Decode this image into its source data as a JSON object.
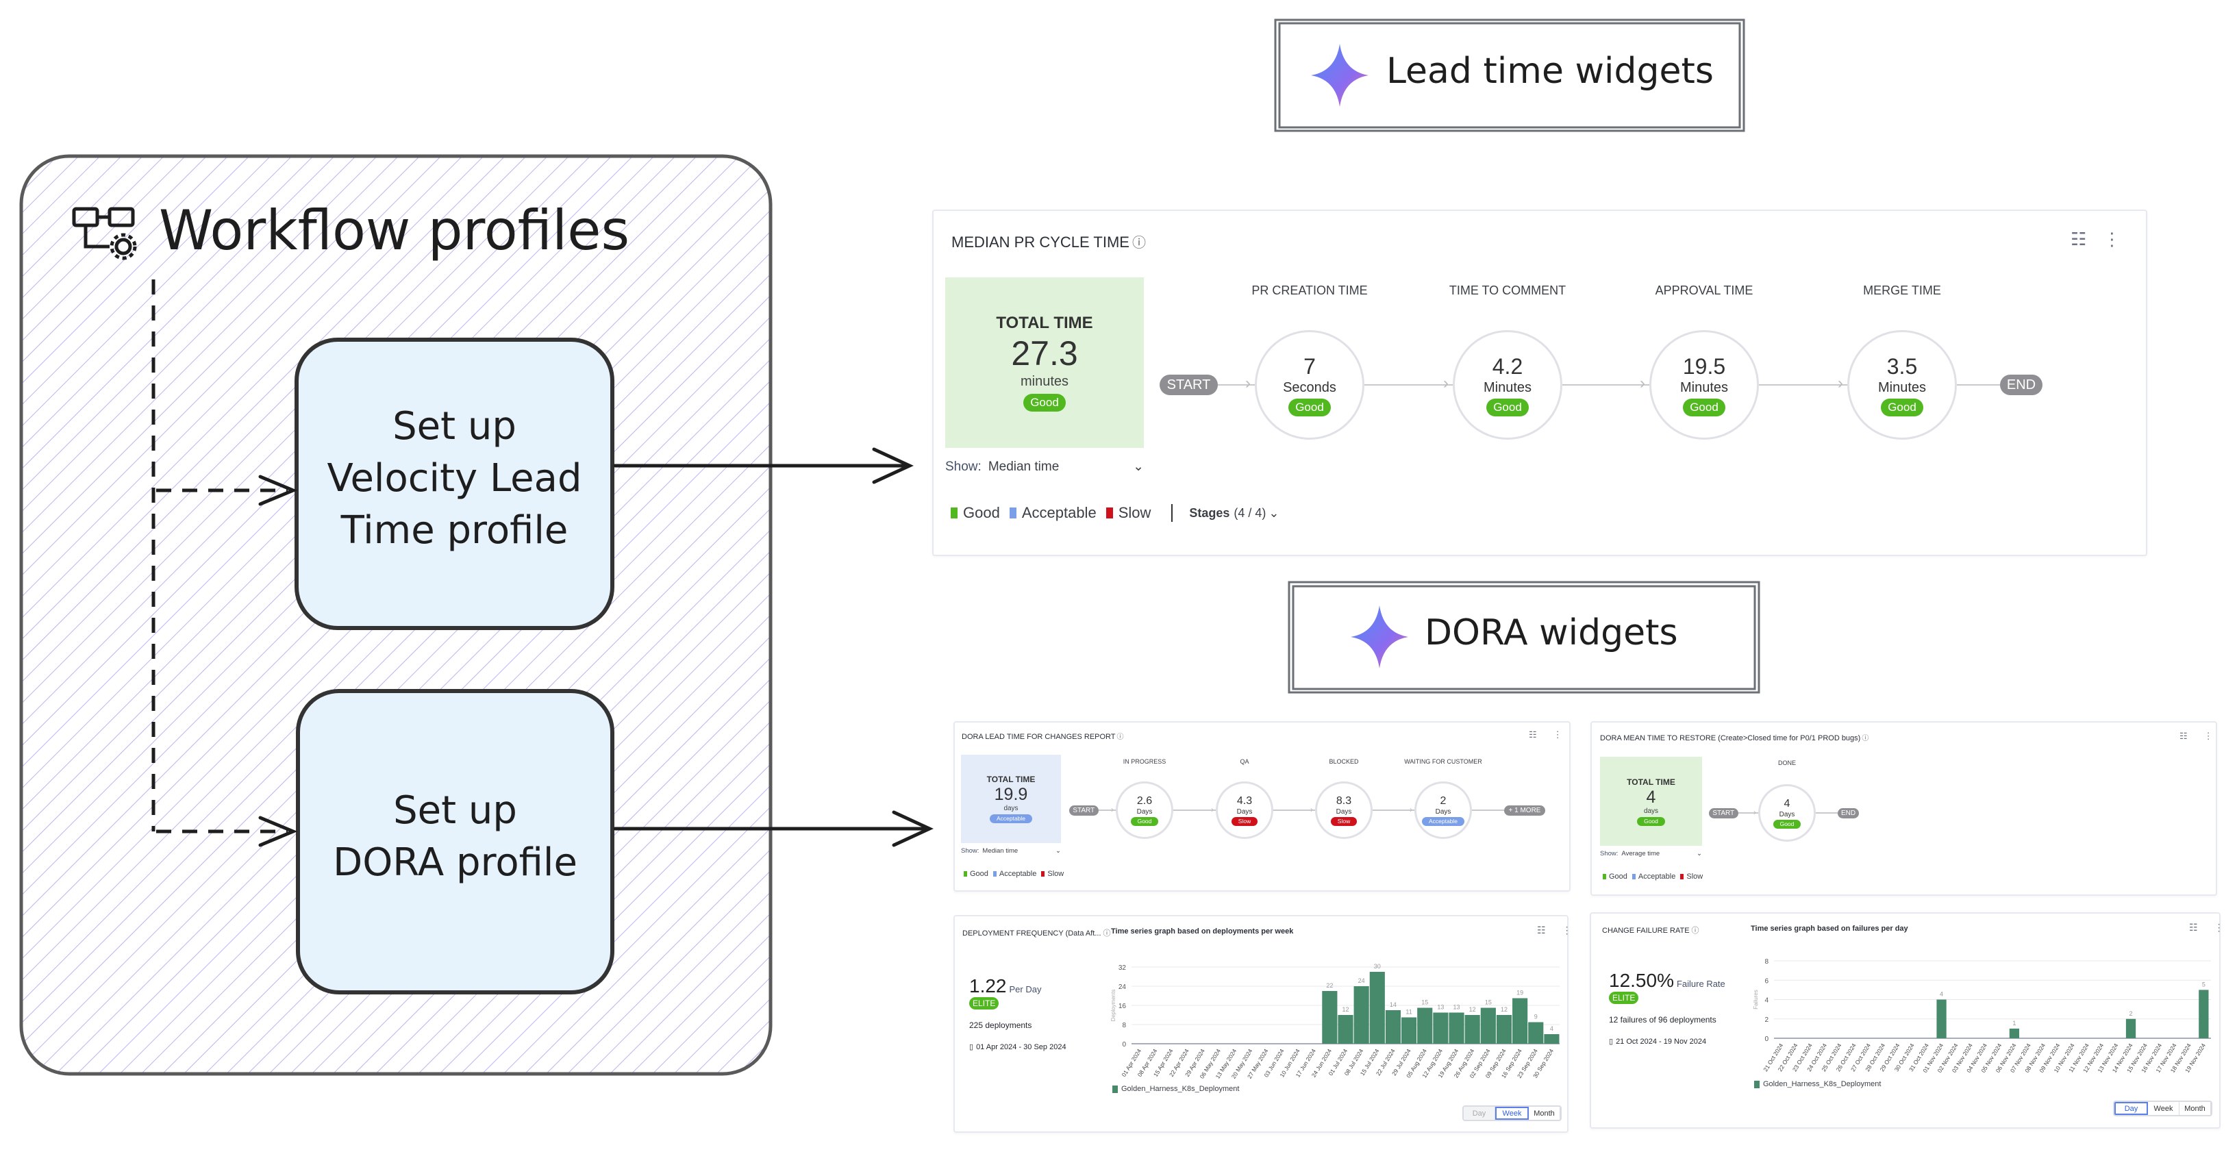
{
  "left_panel": {
    "title": "Workflow profiles",
    "icon": "workflow-settings-icon",
    "box1": "Set up\nVelocity Lead\nTime profile",
    "box2": "Set up\nDORA profile"
  },
  "labels": {
    "lead_time": "Lead time widgets",
    "dora": "DORA widgets",
    "sparkle_icon": "sparkle-icon"
  },
  "colors": {
    "good": "#52b81f",
    "acceptable": "#7a9fe8",
    "slow": "#d0111b",
    "bar": "#468a6b",
    "total_green": "#e0f2da",
    "total_blue": "#e4ecfa"
  },
  "pr_cycle": {
    "title": "MEDIAN PR CYCLE TIME",
    "total_label": "TOTAL TIME",
    "total_value": "27.3",
    "total_unit": "minutes",
    "total_badge": "Good",
    "start": "START",
    "end": "END",
    "stages": [
      {
        "label": "PR CREATION TIME",
        "value": "7",
        "unit": "Seconds",
        "badge": "Good"
      },
      {
        "label": "TIME TO COMMENT",
        "value": "4.2",
        "unit": "Minutes",
        "badge": "Good"
      },
      {
        "label": "APPROVAL TIME",
        "value": "19.5",
        "unit": "Minutes",
        "badge": "Good"
      },
      {
        "label": "MERGE TIME",
        "value": "3.5",
        "unit": "Minutes",
        "badge": "Good"
      }
    ],
    "show_label": "Show:",
    "show_value": "Median time",
    "legend": [
      "Good",
      "Acceptable",
      "Slow"
    ],
    "stages_filter": "Stages",
    "stages_count": "(4 / 4)"
  },
  "dora_lead": {
    "title": "DORA LEAD TIME FOR CHANGES REPORT",
    "total_label": "TOTAL TIME",
    "total_value": "19.9",
    "total_unit": "days",
    "total_badge": "Acceptable",
    "start": "START",
    "more": "+ 1 MORE",
    "stages": [
      {
        "label": "IN PROGRESS",
        "value": "2.6",
        "unit": "Days",
        "badge": "Good"
      },
      {
        "label": "QA",
        "value": "4.3",
        "unit": "Days",
        "badge": "Slow"
      },
      {
        "label": "BLOCKED",
        "value": "8.3",
        "unit": "Days",
        "badge": "Slow"
      },
      {
        "label": "WAITING FOR CUSTOMER",
        "value": "2",
        "unit": "Days",
        "badge": "Acceptable"
      }
    ],
    "show_label": "Show:",
    "show_value": "Median time",
    "legend": [
      "Good",
      "Acceptable",
      "Slow"
    ]
  },
  "dora_mttr": {
    "title": "DORA MEAN TIME TO RESTORE (Create>Closed time for P0/1 PROD bugs)",
    "total_label": "TOTAL TIME",
    "total_value": "4",
    "total_unit": "days",
    "total_badge": "Good",
    "start": "START",
    "end": "END",
    "stages": [
      {
        "label": "DONE",
        "value": "4",
        "unit": "Days",
        "badge": "Good"
      }
    ],
    "show_label": "Show:",
    "show_value": "Average time",
    "legend": [
      "Good",
      "Acceptable",
      "Slow"
    ]
  },
  "deploy_freq": {
    "title": "DEPLOYMENT FREQUENCY (Data Aft...",
    "subtitle": "Time series graph based on deployments per week",
    "value": "1.22",
    "value_unit": "Per Day",
    "badge": "ELITE",
    "count": "225 deployments",
    "date_range": "01 Apr 2024 - 30 Sep 2024",
    "granularity": [
      "Day",
      "Week",
      "Month"
    ],
    "granularity_selected": "Week"
  },
  "change_failure": {
    "title": "CHANGE FAILURE RATE",
    "subtitle": "Time series graph based on failures per day",
    "value": "12.50%",
    "value_unit": "Failure Rate",
    "badge": "ELITE",
    "count": "12 failures of 96 deployments",
    "date_range": "21 Oct 2024 - 19 Nov 2024",
    "granularity": [
      "Day",
      "Week",
      "Month"
    ],
    "granularity_selected": "Day"
  },
  "chart_data": [
    {
      "type": "bar",
      "title": "Time series graph based on deployments per week",
      "ylabel": "Deployments",
      "ylim": [
        0,
        32
      ],
      "yticks": [
        0,
        8,
        16,
        24,
        32
      ],
      "grid": true,
      "legend_position": "bottom-left",
      "categories": [
        "01 Apr 2024",
        "08 Apr 2024",
        "15 Apr 2024",
        "22 Apr 2024",
        "29 Apr 2024",
        "06 May 2024",
        "13 May 2024",
        "20 May 2024",
        "27 May 2024",
        "03 Jun 2024",
        "10 Jun 2024",
        "17 Jun 2024",
        "24 Jun 2024",
        "01 Jul 2024",
        "08 Jul 2024",
        "15 Jul 2024",
        "22 Jul 2024",
        "29 Jul 2024",
        "05 Aug 2024",
        "12 Aug 2024",
        "19 Aug 2024",
        "26 Aug 2024",
        "02 Sep 2024",
        "09 Sep 2024",
        "16 Sep 2024",
        "23 Sep 2024",
        "30 Sep 2024"
      ],
      "series": [
        {
          "name": "Golden_Harness_K8s_Deployment",
          "values": [
            0,
            0,
            0,
            0,
            0,
            0,
            0,
            0,
            0,
            0,
            0,
            0,
            22,
            12,
            24,
            30,
            14,
            11,
            15,
            13,
            13,
            12,
            15,
            12,
            19,
            9,
            4
          ]
        }
      ]
    },
    {
      "type": "bar",
      "title": "Time series graph based on failures per day",
      "ylabel": "Failures",
      "ylim": [
        0,
        8
      ],
      "yticks": [
        0,
        2,
        4,
        6,
        8
      ],
      "grid": true,
      "legend_position": "bottom-left",
      "categories": [
        "21 Oct 2024",
        "22 Oct 2024",
        "23 Oct 2024",
        "24 Oct 2024",
        "25 Oct 2024",
        "26 Oct 2024",
        "27 Oct 2024",
        "28 Oct 2024",
        "29 Oct 2024",
        "30 Oct 2024",
        "31 Oct 2024",
        "01 Nov 2024",
        "02 Nov 2024",
        "03 Nov 2024",
        "04 Nov 2024",
        "05 Nov 2024",
        "06 Nov 2024",
        "07 Nov 2024",
        "08 Nov 2024",
        "09 Nov 2024",
        "10 Nov 2024",
        "11 Nov 2024",
        "12 Nov 2024",
        "13 Nov 2024",
        "14 Nov 2024",
        "15 Nov 2024",
        "16 Nov 2024",
        "17 Nov 2024",
        "18 Nov 2024",
        "19 Nov 2024"
      ],
      "series": [
        {
          "name": "Golden_Harness_K8s_Deployment",
          "values": [
            0,
            0,
            0,
            0,
            0,
            0,
            0,
            0,
            0,
            0,
            0,
            4,
            0,
            0,
            0,
            0,
            1,
            0,
            0,
            0,
            0,
            0,
            0,
            0,
            2,
            0,
            0,
            0,
            0,
            5
          ]
        }
      ]
    }
  ]
}
